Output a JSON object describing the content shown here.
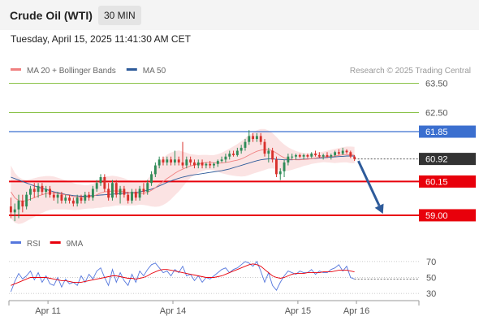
{
  "header": {
    "instrument": "Crude Oil (WTI)",
    "timeframe": "30 MIN",
    "datetime": "Tuesday, April 15, 2025 11:41:30 AM CET"
  },
  "chart_data": [
    {
      "type": "candlestick",
      "legend": [
        {
          "name": "MA 20 + Bollinger Bands",
          "color": "#f08080"
        },
        {
          "name": "MA 50",
          "color": "#2e5b9a"
        }
      ],
      "credit": "Research © 2025 Trading Central",
      "ylim": [
        58.5,
        63.9
      ],
      "xlim": [
        0,
        105
      ],
      "x_ticks": [
        {
          "label": "Apr 11",
          "x": 10
        },
        {
          "label": "Apr 14",
          "x": 42
        },
        {
          "label": "Apr 15",
          "x": 74
        },
        {
          "label": "Apr 16",
          "x": 89
        }
      ],
      "levels": [
        {
          "label": "63.50",
          "value": 63.5,
          "kind": "target"
        },
        {
          "label": "62.50",
          "value": 62.5,
          "kind": "target"
        },
        {
          "label": "61.85",
          "value": 61.85,
          "kind": "resistance"
        },
        {
          "label": "60.92",
          "value": 60.92,
          "kind": "last"
        },
        {
          "label": "60.15",
          "value": 60.15,
          "kind": "pivot"
        },
        {
          "label": "59.00",
          "value": 59.0,
          "kind": "support"
        }
      ],
      "projection": {
        "from": [
          89.5,
          60.85
        ],
        "to": [
          95.8,
          59.05
        ]
      },
      "colors": {
        "up": "#2e8b57",
        "down": "#d9302c",
        "target": "#8bc34a",
        "resistance": "#3b6fcf",
        "pivot": "#e8000b",
        "last": "#333333",
        "projection": "#2e5b9a",
        "band": "#fbe3e3"
      },
      "candles": [
        [
          59.3,
          59.6,
          58.9,
          59.1
        ],
        [
          59.1,
          59.4,
          58.8,
          59.2
        ],
        [
          59.2,
          59.7,
          58.9,
          59.5
        ],
        [
          59.5,
          59.7,
          59.1,
          59.3
        ],
        [
          59.3,
          59.8,
          59.2,
          59.7
        ],
        [
          59.7,
          60.0,
          59.5,
          59.9
        ],
        [
          59.9,
          60.1,
          59.6,
          59.8
        ],
        [
          59.8,
          60.1,
          59.6,
          60.0
        ],
        [
          60.0,
          60.1,
          59.7,
          59.8
        ],
        [
          59.8,
          60.0,
          59.6,
          59.9
        ],
        [
          59.9,
          60.0,
          59.6,
          59.7
        ],
        [
          59.7,
          59.8,
          59.5,
          59.6
        ],
        [
          59.6,
          59.8,
          59.4,
          59.7
        ],
        [
          59.7,
          59.8,
          59.4,
          59.5
        ],
        [
          59.5,
          59.7,
          59.4,
          59.6
        ],
        [
          59.6,
          59.7,
          59.4,
          59.5
        ],
        [
          59.5,
          59.6,
          59.3,
          59.4
        ],
        [
          59.4,
          59.7,
          59.3,
          59.6
        ],
        [
          59.6,
          59.7,
          59.4,
          59.5
        ],
        [
          59.5,
          59.8,
          59.4,
          59.7
        ],
        [
          59.7,
          59.8,
          59.5,
          59.6
        ],
        [
          59.6,
          60.0,
          59.5,
          59.9
        ],
        [
          59.9,
          60.2,
          59.8,
          60.1
        ],
        [
          60.1,
          60.4,
          60.0,
          60.3
        ],
        [
          60.3,
          60.4,
          59.8,
          59.9
        ],
        [
          59.9,
          60.1,
          59.5,
          59.6
        ],
        [
          59.6,
          60.2,
          59.5,
          60.1
        ],
        [
          60.1,
          60.2,
          59.6,
          59.7
        ],
        [
          59.7,
          60.0,
          59.4,
          59.9
        ],
        [
          59.9,
          60.0,
          59.6,
          59.7
        ],
        [
          59.7,
          59.8,
          59.4,
          59.5
        ],
        [
          59.5,
          59.9,
          59.4,
          59.8
        ],
        [
          59.8,
          59.9,
          59.5,
          59.6
        ],
        [
          59.6,
          60.0,
          59.5,
          59.9
        ],
        [
          59.9,
          60.1,
          59.7,
          59.8
        ],
        [
          59.8,
          60.2,
          59.7,
          60.1
        ],
        [
          60.1,
          60.5,
          60.0,
          60.4
        ],
        [
          60.4,
          60.8,
          60.3,
          60.7
        ],
        [
          60.7,
          61.0,
          60.6,
          60.9
        ],
        [
          60.9,
          61.0,
          60.7,
          60.8
        ],
        [
          60.8,
          61.0,
          60.7,
          60.9
        ],
        [
          60.9,
          61.0,
          60.7,
          60.8
        ],
        [
          60.8,
          61.2,
          60.7,
          60.9
        ],
        [
          60.9,
          61.0,
          60.7,
          60.8
        ],
        [
          60.8,
          61.5,
          60.6,
          60.7
        ],
        [
          60.7,
          61.0,
          60.6,
          60.9
        ],
        [
          60.9,
          61.0,
          60.7,
          60.8
        ],
        [
          60.8,
          60.9,
          60.6,
          60.7
        ],
        [
          60.7,
          60.9,
          60.6,
          60.8
        ],
        [
          60.8,
          60.9,
          60.6,
          60.7
        ],
        [
          60.7,
          60.8,
          60.6,
          60.75
        ],
        [
          60.75,
          60.85,
          60.6,
          60.7
        ],
        [
          60.7,
          60.8,
          60.6,
          60.75
        ],
        [
          60.75,
          60.9,
          60.65,
          60.85
        ],
        [
          60.85,
          61.0,
          60.8,
          60.9
        ],
        [
          60.9,
          61.1,
          60.8,
          61.0
        ],
        [
          61.0,
          61.2,
          60.9,
          61.1
        ],
        [
          61.1,
          61.2,
          61.0,
          61.05
        ],
        [
          61.05,
          61.3,
          61.0,
          61.2
        ],
        [
          61.2,
          61.4,
          61.1,
          61.3
        ],
        [
          61.3,
          61.6,
          61.2,
          61.5
        ],
        [
          61.5,
          61.9,
          61.4,
          61.7
        ],
        [
          61.7,
          61.8,
          61.5,
          61.6
        ],
        [
          61.6,
          61.8,
          61.5,
          61.7
        ],
        [
          61.7,
          61.8,
          61.4,
          61.5
        ],
        [
          61.5,
          61.6,
          61.0,
          61.1
        ],
        [
          61.1,
          61.3,
          60.8,
          61.2
        ],
        [
          61.2,
          61.3,
          60.8,
          60.9
        ],
        [
          60.9,
          61.0,
          60.3,
          60.4
        ],
        [
          60.4,
          60.6,
          60.2,
          60.5
        ],
        [
          60.5,
          60.9,
          60.3,
          60.8
        ],
        [
          60.8,
          61.1,
          60.7,
          61.0
        ],
        [
          61.0,
          61.1,
          60.9,
          61.0
        ],
        [
          61.0,
          61.1,
          60.9,
          61.05
        ],
        [
          61.05,
          61.1,
          60.95,
          61.0
        ],
        [
          61.0,
          61.1,
          60.9,
          61.05
        ],
        [
          61.05,
          61.1,
          60.95,
          61.0
        ],
        [
          61.0,
          61.15,
          60.95,
          61.1
        ],
        [
          61.1,
          61.2,
          61.0,
          61.05
        ],
        [
          61.05,
          61.15,
          60.95,
          61.0
        ],
        [
          61.0,
          61.1,
          60.9,
          61.05
        ],
        [
          61.05,
          61.15,
          60.95,
          61.0
        ],
        [
          61.0,
          61.1,
          60.9,
          61.05
        ],
        [
          61.05,
          61.2,
          61.0,
          61.15
        ],
        [
          61.15,
          61.25,
          61.05,
          61.1
        ],
        [
          61.1,
          61.3,
          61.05,
          61.2
        ],
        [
          61.2,
          61.25,
          61.1,
          61.15
        ],
        [
          61.15,
          61.2,
          60.95,
          61.0
        ],
        [
          61.0,
          61.05,
          60.85,
          60.92
        ]
      ],
      "ma20": [
        59.8,
        59.6,
        59.5,
        59.48,
        59.5,
        59.55,
        59.6,
        59.66,
        59.7,
        59.74,
        59.76,
        59.76,
        59.74,
        59.72,
        59.7,
        59.67,
        59.64,
        59.62,
        59.62,
        59.62,
        59.63,
        59.65,
        59.7,
        59.76,
        59.8,
        59.81,
        59.83,
        59.83,
        59.82,
        59.8,
        59.77,
        59.76,
        59.74,
        59.74,
        59.75,
        59.78,
        59.85,
        59.94,
        60.05,
        60.15,
        60.25,
        60.34,
        60.43,
        60.51,
        60.57,
        60.63,
        60.68,
        60.72,
        60.75,
        60.78,
        60.8,
        60.8,
        60.79,
        60.78,
        60.78,
        60.8,
        60.82,
        60.85,
        60.88,
        60.92,
        60.98,
        61.05,
        61.12,
        61.18,
        61.22,
        61.24,
        61.24,
        61.2,
        61.12,
        61.03,
        60.96,
        60.92,
        60.9,
        60.89,
        60.89,
        60.9,
        60.91,
        60.93,
        60.95,
        60.97,
        60.99,
        61.0,
        61.01,
        61.02,
        61.04,
        61.06,
        61.07,
        61.06,
        61.05
      ],
      "ma50": [
        60.3,
        60.25,
        60.2,
        60.15,
        60.1,
        60.05,
        60.0,
        59.96,
        59.92,
        59.88,
        59.84,
        59.8,
        59.77,
        59.74,
        59.71,
        59.69,
        59.67,
        59.66,
        59.65,
        59.65,
        59.66,
        59.67,
        59.68,
        59.69,
        59.7,
        59.71,
        59.72,
        59.73,
        59.74,
        59.75,
        59.76,
        59.77,
        59.78,
        59.8,
        59.82,
        59.85,
        59.89,
        59.94,
        60.0,
        60.06,
        60.12,
        60.17,
        60.22,
        60.26,
        60.3,
        60.33,
        60.36,
        60.38,
        60.4,
        60.42,
        60.44,
        60.46,
        60.48,
        60.5,
        60.52,
        60.55,
        60.58,
        60.62,
        60.66,
        60.7,
        60.74,
        60.78,
        60.82,
        60.86,
        60.89,
        60.91,
        60.92,
        60.92,
        60.91,
        60.9,
        60.89,
        60.89,
        60.89,
        60.9,
        60.9,
        60.91,
        60.92,
        60.93,
        60.94,
        60.95,
        60.96,
        60.97,
        60.98,
        60.99,
        61.0,
        61.01,
        61.02,
        61.02,
        61.02
      ],
      "bb_width": [
        0.9,
        0.85,
        0.8,
        0.75,
        0.7,
        0.68,
        0.66,
        0.64,
        0.62,
        0.6,
        0.58,
        0.56,
        0.54,
        0.52,
        0.5,
        0.48,
        0.46,
        0.44,
        0.42,
        0.4,
        0.4,
        0.42,
        0.45,
        0.5,
        0.52,
        0.52,
        0.52,
        0.5,
        0.48,
        0.46,
        0.44,
        0.42,
        0.4,
        0.38,
        0.4,
        0.45,
        0.55,
        0.65,
        0.75,
        0.8,
        0.82,
        0.8,
        0.75,
        0.7,
        0.6,
        0.5,
        0.4,
        0.35,
        0.3,
        0.28,
        0.26,
        0.25,
        0.26,
        0.3,
        0.35,
        0.4,
        0.45,
        0.5,
        0.55,
        0.6,
        0.65,
        0.68,
        0.7,
        0.72,
        0.72,
        0.7,
        0.65,
        0.6,
        0.55,
        0.5,
        0.45,
        0.4,
        0.35,
        0.3,
        0.26,
        0.22,
        0.2,
        0.18,
        0.18,
        0.18,
        0.18,
        0.2,
        0.22,
        0.24,
        0.25,
        0.26,
        0.27,
        0.28,
        0.28
      ]
    },
    {
      "type": "line",
      "legend": [
        {
          "name": "RSI",
          "color": "#5577dd"
        },
        {
          "name": "9MA",
          "color": "#e8000b"
        }
      ],
      "ylim": [
        24,
        78
      ],
      "y_ticks": [
        30,
        50,
        70
      ],
      "tick_labels": [
        {
          "label": "70",
          "value": 70
        },
        {
          "label": "50",
          "value": 50
        },
        {
          "label": "30",
          "value": 30
        }
      ],
      "series": [
        {
          "name": "RSI",
          "color": "#5577dd",
          "values": [
            32,
            45,
            55,
            48,
            52,
            58,
            47,
            56,
            44,
            52,
            42,
            40,
            50,
            38,
            48,
            42,
            44,
            40,
            52,
            44,
            54,
            48,
            58,
            62,
            50,
            40,
            60,
            44,
            56,
            46,
            40,
            54,
            44,
            58,
            52,
            60,
            66,
            68,
            62,
            56,
            58,
            52,
            60,
            56,
            64,
            52,
            54,
            46,
            52,
            44,
            50,
            48,
            52,
            56,
            60,
            62,
            56,
            60,
            62,
            66,
            70,
            68,
            64,
            70,
            58,
            44,
            56,
            40,
            34,
            44,
            52,
            58,
            56,
            54,
            58,
            56,
            56,
            60,
            54,
            58,
            56,
            56,
            60,
            62,
            66,
            58,
            64,
            50,
            48
          ]
        },
        {
          "name": "9MA",
          "color": "#e8000b",
          "values": [
            40,
            42,
            44,
            46,
            48,
            50,
            50,
            50,
            50,
            50,
            49,
            48,
            47,
            46,
            46,
            45,
            44,
            44,
            44,
            45,
            46,
            47,
            48,
            49,
            50,
            51,
            52,
            52,
            51,
            50,
            49,
            49,
            48,
            49,
            50,
            52,
            55,
            57,
            59,
            60,
            60,
            59,
            58,
            57,
            56,
            55,
            54,
            53,
            52,
            51,
            50,
            50,
            50,
            51,
            52,
            54,
            56,
            58,
            60,
            62,
            64,
            66,
            67,
            66,
            64,
            60,
            56,
            52,
            50,
            49,
            50,
            52,
            54,
            55,
            55,
            55,
            56,
            56,
            56,
            56,
            57,
            57,
            57,
            58,
            59,
            59,
            59,
            58,
            57
          ]
        }
      ]
    }
  ]
}
